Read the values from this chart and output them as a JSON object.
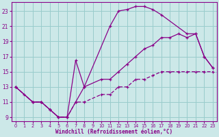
{
  "bg_color": "#cce8e8",
  "line_color": "#880088",
  "grid_color": "#99cccc",
  "xlabel": "Windchill (Refroidissement éolien,°C)",
  "xlim": [
    -0.5,
    23.5
  ],
  "ylim": [
    8.5,
    24.2
  ],
  "xticks": [
    0,
    1,
    2,
    3,
    4,
    5,
    6,
    7,
    8,
    9,
    10,
    11,
    12,
    13,
    14,
    15,
    16,
    17,
    18,
    19,
    20,
    21,
    22,
    23
  ],
  "yticks": [
    9,
    11,
    13,
    15,
    17,
    19,
    21,
    23
  ],
  "line1_x": [
    0,
    1,
    2,
    3,
    4,
    5,
    6,
    7,
    8,
    11,
    12,
    13,
    14,
    15,
    16,
    17,
    20,
    21,
    22,
    23
  ],
  "line1_y": [
    13,
    12,
    11,
    11,
    10,
    9,
    9,
    16.5,
    13,
    21,
    23,
    23.2,
    23.6,
    23.6,
    23.2,
    22.5,
    20,
    20,
    17,
    15.5
  ],
  "line2_x": [
    0,
    2,
    3,
    4,
    5,
    6,
    7,
    8,
    10,
    11,
    12,
    13,
    14,
    15,
    16,
    17,
    18,
    19,
    20,
    21,
    22,
    23
  ],
  "line2_y": [
    13,
    11,
    11,
    10,
    9,
    9,
    11,
    13,
    14,
    14,
    15,
    16,
    17,
    18,
    18.5,
    19.5,
    19.5,
    20,
    19.5,
    20,
    17,
    15.5
  ],
  "line3_x": [
    0,
    2,
    3,
    4,
    5,
    6,
    7,
    8,
    10,
    11,
    12,
    13,
    14,
    15,
    16,
    17,
    18,
    19,
    20,
    21,
    22,
    23
  ],
  "line3_y": [
    13,
    11,
    11,
    10,
    9,
    9,
    11,
    11,
    12,
    12,
    13,
    13,
    14,
    14,
    14.5,
    15,
    15,
    15,
    15,
    15,
    15,
    15
  ]
}
